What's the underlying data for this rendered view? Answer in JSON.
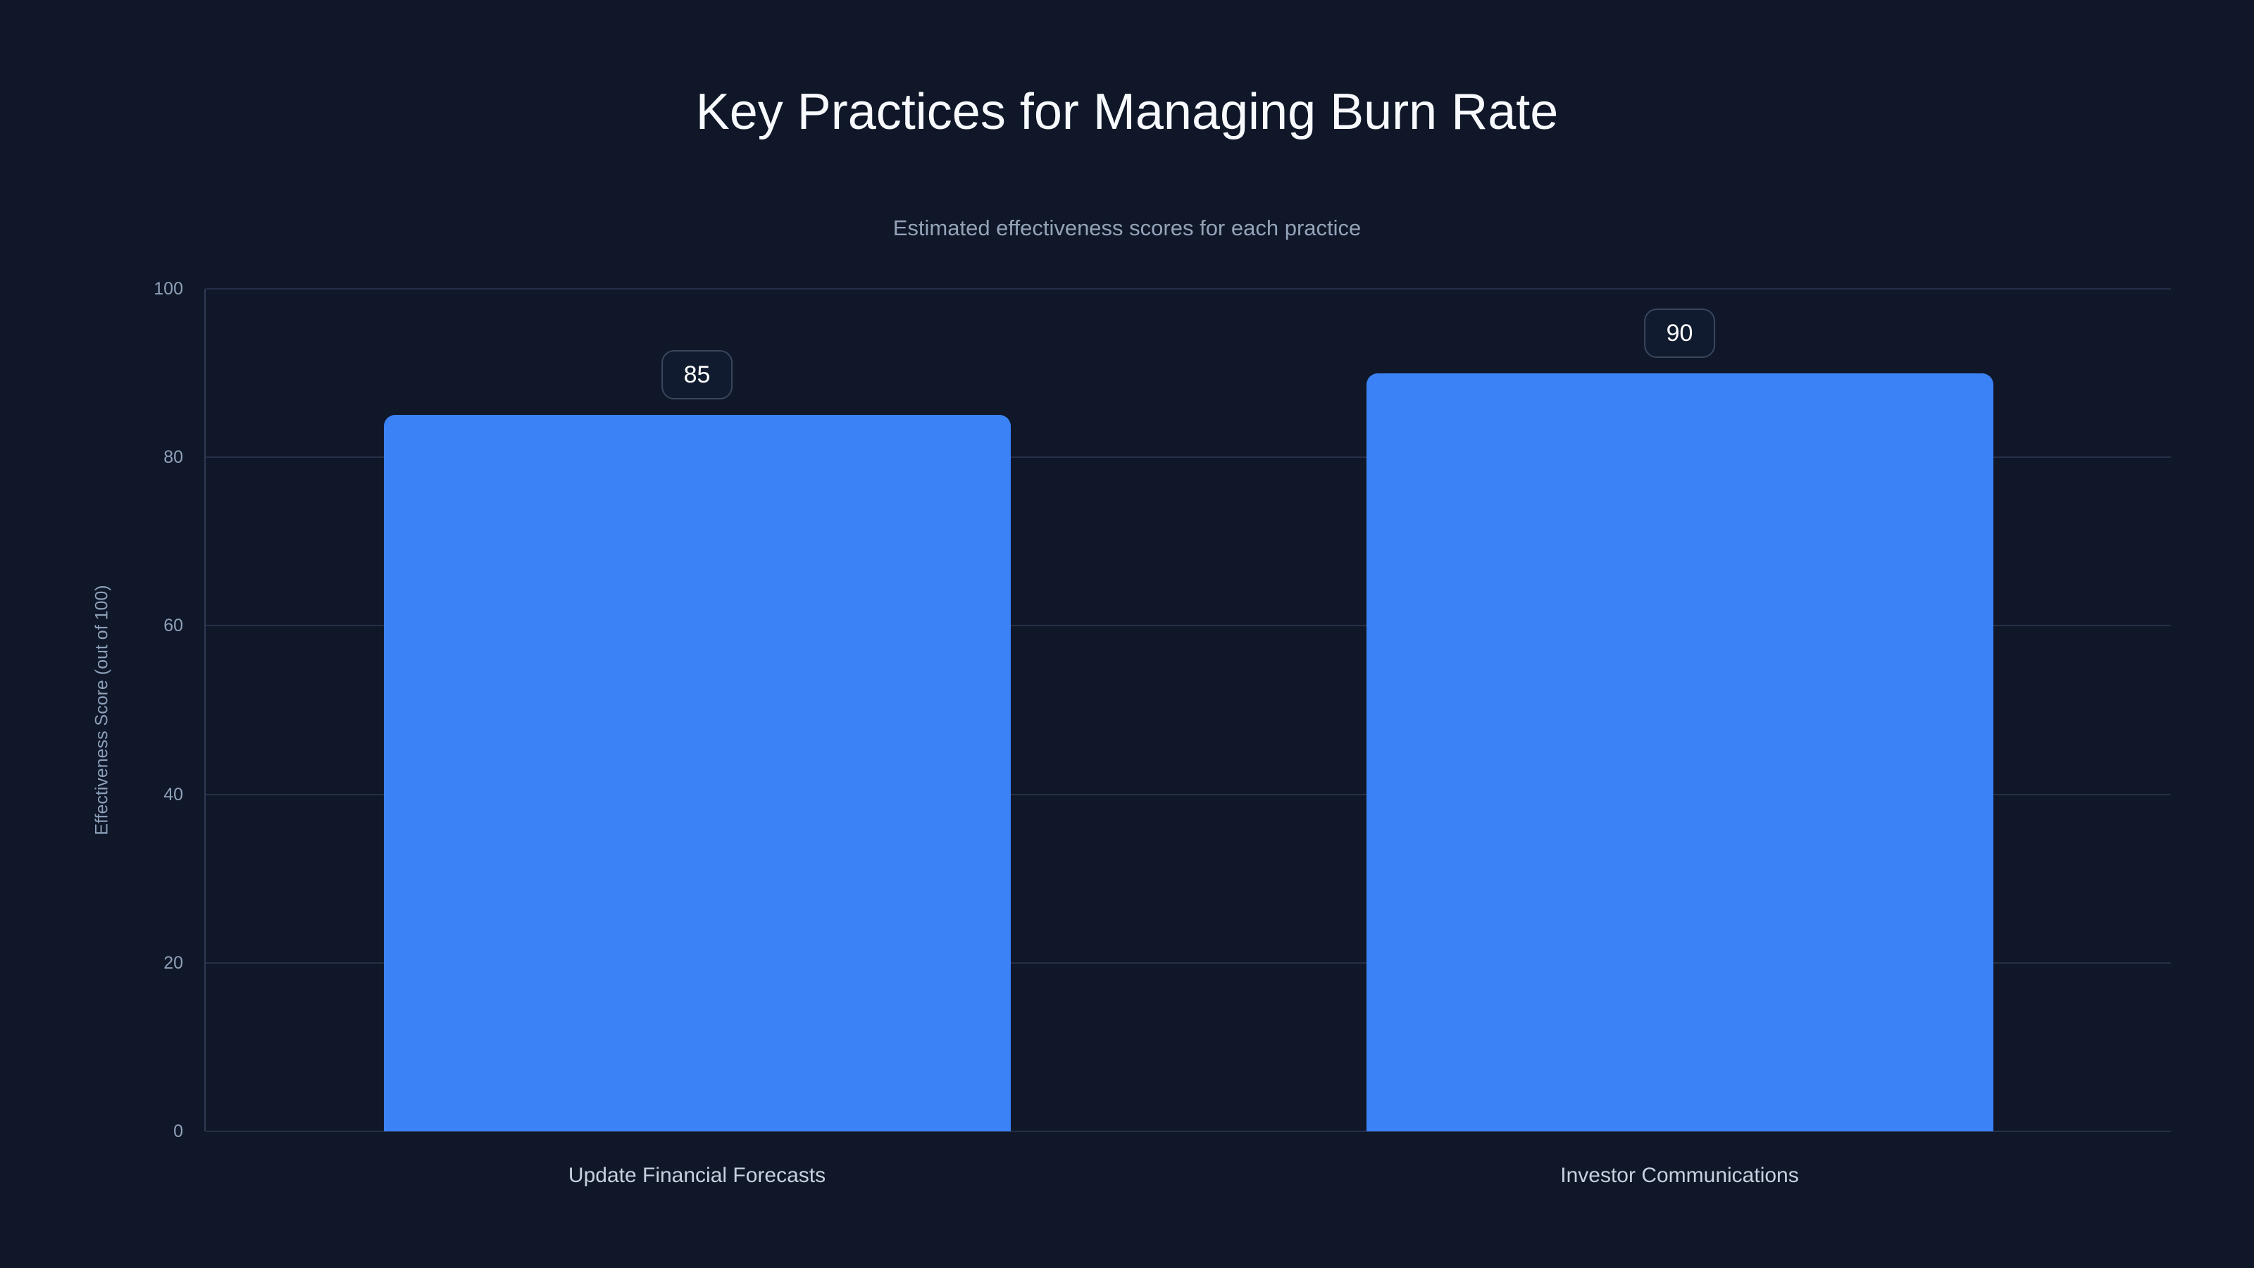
{
  "page": {
    "background_color": "#0f1729"
  },
  "chart_data": {
    "type": "bar",
    "title": "Key Practices for Managing Burn Rate",
    "subtitle": "Estimated effectiveness scores for each practice",
    "categories": [
      "Update Financial Forecasts",
      "Investor Communications"
    ],
    "values": [
      85,
      90
    ],
    "data_labels": [
      "85",
      "90"
    ],
    "xlabel": "",
    "ylabel": "Effectiveness Score (out of 100)",
    "ylim": [
      0,
      100
    ],
    "yticks": [
      0,
      20,
      40,
      60,
      80,
      100
    ],
    "grid": true,
    "legend": false,
    "bar_color": "#3b82f6",
    "value_badge_text_color": "#ffffff",
    "value_badge_border_color": "#3a465c",
    "gridline_color": "#252f47",
    "background_color": "#0f1729"
  }
}
